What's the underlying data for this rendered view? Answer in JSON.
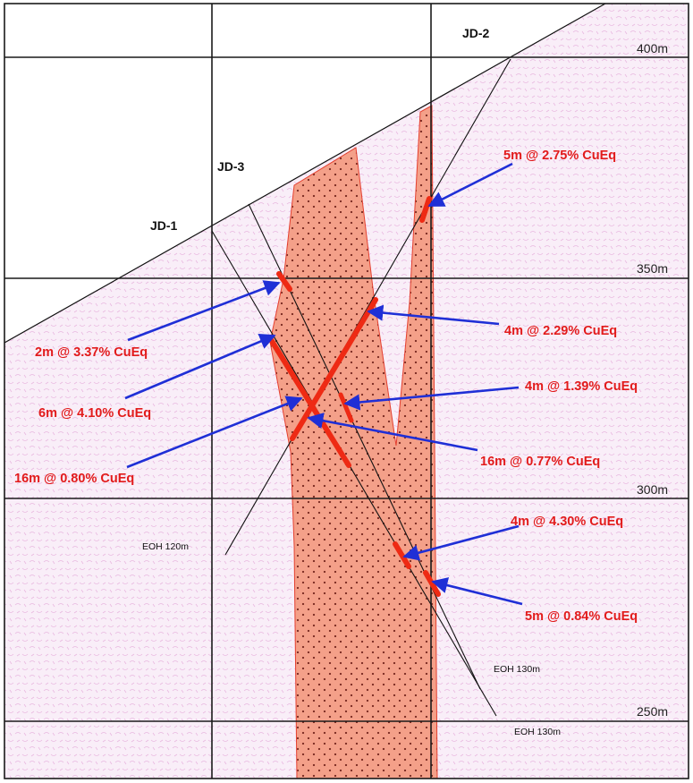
{
  "colors": {
    "host_rock": "#f9eef8",
    "host_texture": "#e9b8e0",
    "ore_body": "#f4a089",
    "ore_dot": "#7a2a22",
    "intercept": "#ee2a14",
    "arrow": "#1f2fd6",
    "label": "#e21b1b",
    "grid": "#1a1a1a"
  },
  "elevations": [
    "400m",
    "350m",
    "300m",
    "250m"
  ],
  "holes": [
    {
      "id": "JD-1",
      "eoh": "EOH 130m"
    },
    {
      "id": "JD-2",
      "eoh": "EOH 120m"
    },
    {
      "id": "JD-3",
      "eoh": "EOH 130m"
    }
  ],
  "intercepts": [
    {
      "label": "5m @ 2.75% CuEq"
    },
    {
      "label": "4m @ 2.29% CuEq"
    },
    {
      "label": "2m @ 3.37% CuEq"
    },
    {
      "label": "6m @ 4.10% CuEq"
    },
    {
      "label": "4m @ 1.39% CuEq"
    },
    {
      "label": "16m @ 0.80% CuEq"
    },
    {
      "label": "16m @ 0.77% CuEq"
    },
    {
      "label": "4m @ 4.30% CuEq"
    },
    {
      "label": "5m @ 0.84% CuEq"
    }
  ]
}
